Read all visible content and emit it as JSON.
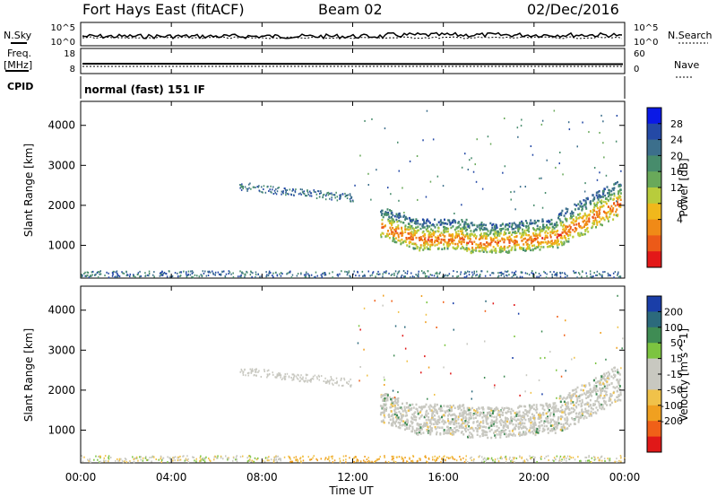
{
  "header": {
    "station": "Fort Hays East (fitACF)",
    "beam": "Beam 02",
    "date": "02/Dec/2016",
    "cpid_mode": "normal (fast) 151 IF"
  },
  "side_labels": {
    "nsky": "N.Sky",
    "freq_line1": "Freq.",
    "freq_line2": "[MHz]",
    "cpid": "CPID",
    "nsearch": "N.Search",
    "nave": "Nave"
  },
  "chart_data": [
    {
      "type": "line",
      "title": "N.Sky / N.Search",
      "y_ticks_left": [
        "10^5",
        "10^0"
      ],
      "y_ticks_right": [
        "10^5",
        "10^0"
      ]
    },
    {
      "type": "line",
      "title": "Freq / Nave",
      "y_ticks_left": [
        "18",
        "8"
      ],
      "y_ticks_right": [
        "60",
        "0"
      ]
    },
    {
      "type": "heatmap",
      "parameter": "Power",
      "ylabel": "Slant Range [km]",
      "ylim": [
        180,
        4600
      ],
      "y_ticks": [
        1000,
        2000,
        3000,
        4000
      ],
      "colorbar_label": "Power [dB]",
      "colorbar_ticks": [
        "28",
        "24",
        "20",
        "16",
        "12",
        "8",
        "4"
      ],
      "colors": [
        "#0a19e6",
        "#2449a6",
        "#3c6f8c",
        "#478c6c",
        "#69a95a",
        "#b8cc3c",
        "#f0b81c",
        "#f08a17",
        "#ec5a18",
        "#e31818"
      ]
    },
    {
      "type": "heatmap",
      "parameter": "Velocity",
      "ylabel": "Slant Range [km]",
      "ylim": [
        180,
        4600
      ],
      "y_ticks": [
        1000,
        2000,
        3000,
        4000
      ],
      "colorbar_label": "Velocity [m s^-1]",
      "colorbar_ticks": [
        "200",
        "100",
        "50",
        "15",
        "-15",
        "-50",
        "-100",
        "-200"
      ],
      "colors": [
        "#1a3ea8",
        "#2c6a7c",
        "#3f8c54",
        "#7cc440",
        "#c8c8c0",
        "#c8c8c0",
        "#f0c24a",
        "#f0a020",
        "#f06018",
        "#e01818"
      ],
      "xlabel": "Time UT",
      "x_ticks": [
        "00:00",
        "04:00",
        "08:00",
        "12:00",
        "16:00",
        "20:00",
        "00:00"
      ]
    }
  ]
}
